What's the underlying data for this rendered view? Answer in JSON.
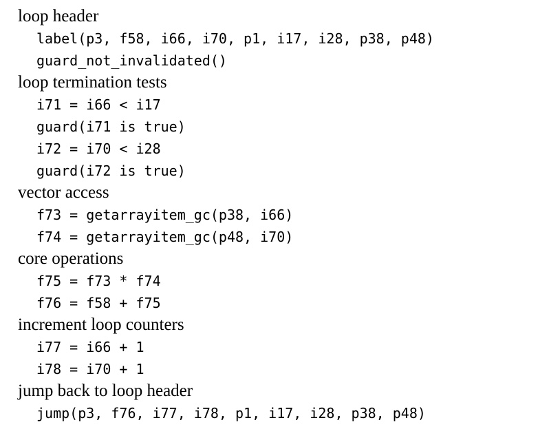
{
  "sections": [
    {
      "heading": "loop header",
      "lines": [
        "label(p3, f58, i66, i70, p1, i17, i28, p38, p48)",
        "guard_not_invalidated()"
      ]
    },
    {
      "heading": "loop termination tests",
      "lines": [
        "i71 = i66 < i17",
        "guard(i71 is true)",
        "i72 = i70 < i28",
        "guard(i72 is true)"
      ]
    },
    {
      "heading": "vector access",
      "lines": [
        "f73 = getarrayitem_gc(p38, i66)",
        "f74 = getarrayitem_gc(p48, i70)"
      ]
    },
    {
      "heading": "core operations",
      "lines": [
        "f75 = f73 * f74",
        "f76 = f58 + f75"
      ]
    },
    {
      "heading": "increment loop counters",
      "lines": [
        "i77 = i66 + 1",
        "i78 = i70 + 1"
      ]
    },
    {
      "heading": "jump back to loop header",
      "lines": [
        "jump(p3, f76, i77, i78, p1, i17, i28, p38, p48)"
      ]
    }
  ]
}
